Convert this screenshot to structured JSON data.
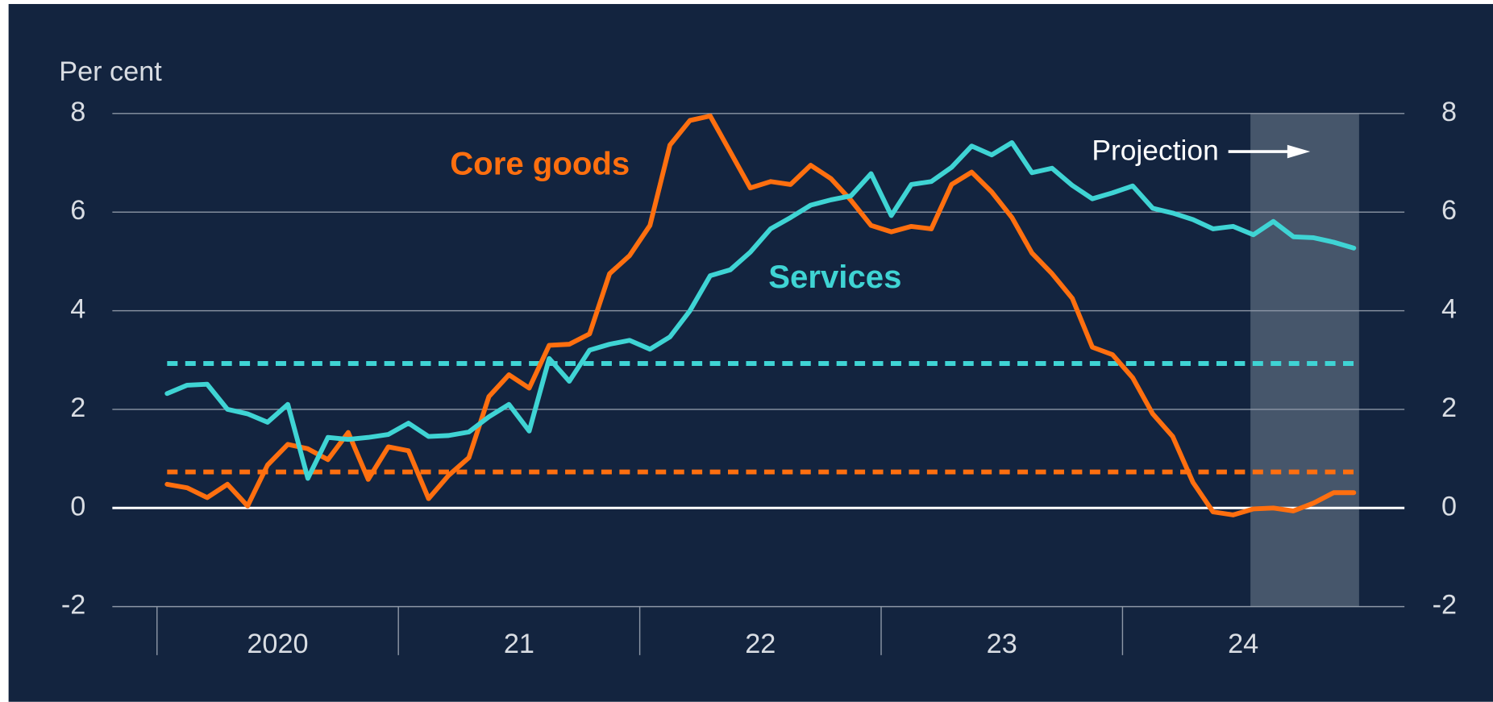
{
  "chart_data": {
    "type": "line",
    "y_label": "Per cent",
    "x": [
      2020.042,
      2020.125,
      2020.208,
      2020.292,
      2020.375,
      2020.458,
      2020.542,
      2020.625,
      2020.708,
      2020.792,
      2020.875,
      2020.958,
      2021.042,
      2021.125,
      2021.208,
      2021.292,
      2021.375,
      2021.458,
      2021.542,
      2021.625,
      2021.708,
      2021.792,
      2021.875,
      2021.958,
      2022.042,
      2022.125,
      2022.208,
      2022.292,
      2022.375,
      2022.458,
      2022.542,
      2022.625,
      2022.708,
      2022.792,
      2022.875,
      2022.958,
      2023.042,
      2023.125,
      2023.208,
      2023.292,
      2023.375,
      2023.458,
      2023.542,
      2023.625,
      2023.708,
      2023.792,
      2023.875,
      2023.958,
      2024.042,
      2024.125,
      2024.208,
      2024.292,
      2024.375,
      2024.458,
      2024.542,
      2024.625,
      2024.708,
      2024.792,
      2024.875,
      2024.958
    ],
    "series": [
      {
        "name": "Core goods",
        "color": "#ff6f0f",
        "values": [
          0.48,
          0.41,
          0.21,
          0.48,
          0.04,
          0.87,
          1.29,
          1.2,
          0.98,
          1.53,
          0.58,
          1.24,
          1.16,
          0.19,
          0.66,
          1.02,
          2.26,
          2.7,
          2.43,
          3.3,
          3.32,
          3.53,
          4.75,
          5.12,
          5.73,
          7.36,
          7.86,
          7.95,
          7.22,
          6.49,
          6.62,
          6.56,
          6.95,
          6.68,
          6.24,
          5.73,
          5.6,
          5.71,
          5.66,
          6.56,
          6.81,
          6.41,
          5.89,
          5.17,
          4.75,
          4.25,
          3.26,
          3.11,
          2.64,
          1.91,
          1.45,
          0.52,
          -0.08,
          -0.14,
          -0.02,
          0,
          -0.06,
          0.1,
          0.31,
          0.31
        ]
      },
      {
        "name": "Services",
        "color": "#3fd4d4",
        "values": [
          2.32,
          2.49,
          2.51,
          2.0,
          1.91,
          1.74,
          2.1,
          0.6,
          1.43,
          1.39,
          1.43,
          1.49,
          1.72,
          1.45,
          1.47,
          1.54,
          1.85,
          2.1,
          1.56,
          3.03,
          2.57,
          3.2,
          3.32,
          3.4,
          3.22,
          3.47,
          4.0,
          4.71,
          4.83,
          5.19,
          5.66,
          5.89,
          6.14,
          6.25,
          6.33,
          6.78,
          5.93,
          6.56,
          6.62,
          6.91,
          7.34,
          7.16,
          7.41,
          6.8,
          6.89,
          6.54,
          6.27,
          6.39,
          6.53,
          6.08,
          5.98,
          5.85,
          5.66,
          5.71,
          5.54,
          5.81,
          5.5,
          5.48,
          5.39,
          5.27
        ]
      }
    ],
    "reference_lines": [
      {
        "value": 2.93,
        "color": "#3fd4d4"
      },
      {
        "value": 0.73,
        "color": "#ff6f0f"
      }
    ],
    "shaded_region": {
      "label": "Projection",
      "x": [
        2024.53,
        2024.98
      ]
    },
    "xlim": [
      2019.815,
      2025.168
    ],
    "xticks": [
      2020,
      {
        "value": 2021,
        "label": "21"
      },
      {
        "value": 2022,
        "label": "22"
      },
      {
        "value": 2023,
        "label": "23"
      },
      {
        "value": 2024,
        "label": "24"
      }
    ],
    "ylim": [
      -2,
      8
    ],
    "yticks": [
      -2,
      0,
      2,
      4,
      6,
      8
    ],
    "grid": true
  }
}
